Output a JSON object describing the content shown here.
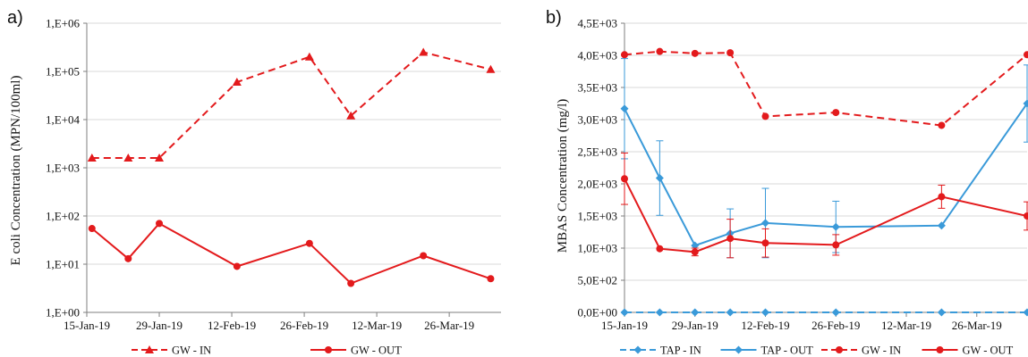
{
  "figure": {
    "panel_a_label": "a)",
    "panel_b_label": "b)"
  },
  "chart_data": [
    {
      "type": "line",
      "panel": "a)",
      "title": "",
      "ylabel": "E coli Concentration (MPN/100ml)",
      "xlabel": "",
      "y_scale": "log",
      "ylim": [
        1,
        1000000
      ],
      "yticks": [
        {
          "value": 1,
          "label": "1,E+00"
        },
        {
          "value": 10,
          "label": "1,E+01"
        },
        {
          "value": 100,
          "label": "1,E+02"
        },
        {
          "value": 1000,
          "label": "1,E+03"
        },
        {
          "value": 10000,
          "label": "1,E+04"
        },
        {
          "value": 100000,
          "label": "1,E+05"
        },
        {
          "value": 1000000,
          "label": "1,E+06"
        }
      ],
      "x_type": "date",
      "xlim": [
        "2019-01-15",
        "2019-04-05"
      ],
      "xticks": [
        {
          "date": "2019-01-15",
          "label": "15-Jan-19"
        },
        {
          "date": "2019-01-29",
          "label": "29-Jan-19"
        },
        {
          "date": "2019-02-12",
          "label": "12-Feb-19"
        },
        {
          "date": "2019-02-26",
          "label": "26-Feb-19"
        },
        {
          "date": "2019-03-12",
          "label": "12-Mar-19"
        },
        {
          "date": "2019-03-26",
          "label": "26-Mar-19"
        }
      ],
      "grid": "horizontal",
      "legend_position": "bottom",
      "series": [
        {
          "name": "GW - IN",
          "color": "#e31a1c",
          "dash": "dashed",
          "marker": "triangle",
          "points": [
            {
              "x": "2019-01-16",
              "y": 1600
            },
            {
              "x": "2019-01-23",
              "y": 1600
            },
            {
              "x": "2019-01-29",
              "y": 1600
            },
            {
              "x": "2019-02-13",
              "y": 60000
            },
            {
              "x": "2019-02-27",
              "y": 200000
            },
            {
              "x": "2019-03-07",
              "y": 12000
            },
            {
              "x": "2019-03-21",
              "y": 250000
            },
            {
              "x": "2019-04-03",
              "y": 110000
            }
          ]
        },
        {
          "name": "GW - OUT",
          "color": "#e31a1c",
          "dash": "solid",
          "marker": "circle",
          "points": [
            {
              "x": "2019-01-16",
              "y": 55
            },
            {
              "x": "2019-01-23",
              "y": 13
            },
            {
              "x": "2019-01-29",
              "y": 70
            },
            {
              "x": "2019-02-13",
              "y": 9
            },
            {
              "x": "2019-02-27",
              "y": 27
            },
            {
              "x": "2019-03-07",
              "y": 4
            },
            {
              "x": "2019-03-21",
              "y": 15
            },
            {
              "x": "2019-04-03",
              "y": 5
            }
          ]
        }
      ]
    },
    {
      "type": "line",
      "panel": "b)",
      "title": "",
      "ylabel": "MBAS Concentration (mg/l)",
      "xlabel": "",
      "y_scale": "linear",
      "ylim": [
        0,
        4500
      ],
      "yticks": [
        {
          "value": 0,
          "label": "0,0E+00"
        },
        {
          "value": 500,
          "label": "5,0E+02"
        },
        {
          "value": 1000,
          "label": "1,0E+03"
        },
        {
          "value": 1500,
          "label": "1,5E+03"
        },
        {
          "value": 2000,
          "label": "2,0E+03"
        },
        {
          "value": 2500,
          "label": "2,5E+03"
        },
        {
          "value": 3000,
          "label": "3,0E+03"
        },
        {
          "value": 3500,
          "label": "3,5E+03"
        },
        {
          "value": 4000,
          "label": "4,0E+03"
        },
        {
          "value": 4500,
          "label": "4,5E+03"
        }
      ],
      "x_type": "date",
      "xlim": [
        "2019-01-15",
        "2019-04-05"
      ],
      "xticks": [
        {
          "date": "2019-01-15",
          "label": "15-Jan-19"
        },
        {
          "date": "2019-01-29",
          "label": "29-Jan-19"
        },
        {
          "date": "2019-02-12",
          "label": "12-Feb-19"
        },
        {
          "date": "2019-02-26",
          "label": "26-Feb-19"
        },
        {
          "date": "2019-03-12",
          "label": "12-Mar-19"
        },
        {
          "date": "2019-03-26",
          "label": "26-Mar-19"
        }
      ],
      "grid": "horizontal",
      "legend_position": "bottom",
      "series": [
        {
          "name": "TAP - IN",
          "color": "#3a9ad9",
          "dash": "dashed",
          "marker": "diamond",
          "points": [
            {
              "x": "2019-01-15",
              "y": 0
            },
            {
              "x": "2019-01-22",
              "y": 0
            },
            {
              "x": "2019-01-29",
              "y": 0
            },
            {
              "x": "2019-02-05",
              "y": 0
            },
            {
              "x": "2019-02-12",
              "y": 0
            },
            {
              "x": "2019-02-26",
              "y": 0
            },
            {
              "x": "2019-03-19",
              "y": 0
            },
            {
              "x": "2019-04-05",
              "y": 0
            }
          ]
        },
        {
          "name": "TAP - OUT",
          "color": "#3a9ad9",
          "dash": "solid",
          "marker": "diamond",
          "points": [
            {
              "x": "2019-01-15",
              "y": 3170,
              "err": 780
            },
            {
              "x": "2019-01-22",
              "y": 2090,
              "err": 580
            },
            {
              "x": "2019-01-29",
              "y": 1040,
              "err": 0
            },
            {
              "x": "2019-02-05",
              "y": 1230,
              "err": 380
            },
            {
              "x": "2019-02-12",
              "y": 1390,
              "err": 540
            },
            {
              "x": "2019-02-26",
              "y": 1330,
              "err": 400
            },
            {
              "x": "2019-03-19",
              "y": 1350,
              "err": 0
            },
            {
              "x": "2019-04-05",
              "y": 3250,
              "err": 600
            }
          ]
        },
        {
          "name": "GW - IN",
          "color": "#e31a1c",
          "dash": "dashed",
          "marker": "circle",
          "points": [
            {
              "x": "2019-01-15",
              "y": 4010
            },
            {
              "x": "2019-01-22",
              "y": 4060
            },
            {
              "x": "2019-01-29",
              "y": 4030
            },
            {
              "x": "2019-02-05",
              "y": 4040
            },
            {
              "x": "2019-02-12",
              "y": 3050
            },
            {
              "x": "2019-02-26",
              "y": 3110
            },
            {
              "x": "2019-03-19",
              "y": 2910
            },
            {
              "x": "2019-04-05",
              "y": 4010
            }
          ]
        },
        {
          "name": "GW - OUT",
          "color": "#e31a1c",
          "dash": "solid",
          "marker": "circle",
          "points": [
            {
              "x": "2019-01-15",
              "y": 2080,
              "err": 400
            },
            {
              "x": "2019-01-22",
              "y": 990,
              "err": 0
            },
            {
              "x": "2019-01-29",
              "y": 940,
              "err": 60
            },
            {
              "x": "2019-02-05",
              "y": 1150,
              "err": 300
            },
            {
              "x": "2019-02-12",
              "y": 1080,
              "err": 220
            },
            {
              "x": "2019-02-26",
              "y": 1050,
              "err": 160
            },
            {
              "x": "2019-03-19",
              "y": 1800,
              "err": 180
            },
            {
              "x": "2019-04-05",
              "y": 1500,
              "err": 220
            }
          ]
        }
      ]
    }
  ]
}
